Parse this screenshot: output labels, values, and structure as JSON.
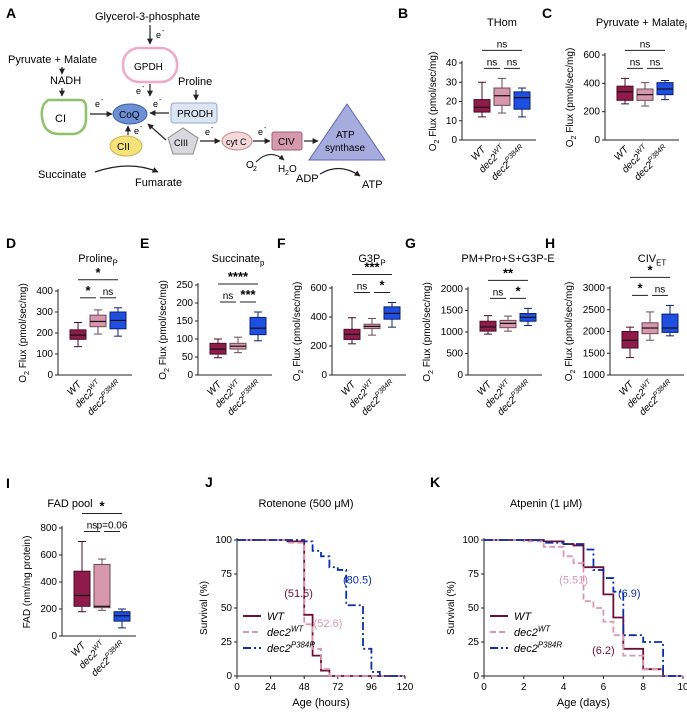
{
  "colors": {
    "wt": "#8e1b4a",
    "dec2wt": "#d897ad",
    "dec2p384r": "#1f4fe0",
    "wt_dark": "#6e1036",
    "p384r_dark": "#0b2fa8"
  },
  "groups": [
    "WT",
    "dec2",
    "dec2"
  ],
  "group_sup": [
    "",
    "WT",
    "P384R"
  ],
  "schematic": {
    "panel_label": "A",
    "glycerol": "Glycerol-3-phosphate",
    "pyruvate": "Pyruvate + Malate",
    "nadh": "NADH",
    "ci": "CI",
    "gpdh": "GPDH",
    "coq": "CoQ",
    "proline": "Proline",
    "prodh": "PRODH",
    "cii": "CII",
    "ciii": "CIII",
    "cytc": "cyt C",
    "civ": "CIV",
    "atp_synthase_1": "ATP",
    "atp_synthase_2": "synthase",
    "succinate": "Succinate",
    "fumarate": "Fumarate",
    "o2": "O",
    "o2_sub": "2",
    "h2o_h": "H",
    "h2o_sub": "2",
    "h2o_o": "O",
    "adp": "ADP",
    "atp": "ATP",
    "e": "e",
    "e_sup": "-"
  },
  "chart_data": [
    {
      "id": "B",
      "type": "box",
      "title": "THom",
      "title_sub": "",
      "ylabel": "O2 Flux (pmol/sec/mg)",
      "ylim": [
        0,
        40
      ],
      "yticks": [
        0,
        10,
        20,
        30,
        40
      ],
      "boxes": [
        {
          "min": 12,
          "q1": 14.5,
          "median": 17,
          "q3": 21,
          "max": 30
        },
        {
          "min": 14,
          "q1": 18,
          "median": 23,
          "q3": 27,
          "max": 32
        },
        {
          "min": 12,
          "q1": 16,
          "median": 22,
          "q3": 25,
          "max": 27
        }
      ],
      "sig": [
        {
          "a": 0,
          "b": 2,
          "label": "ns"
        },
        {
          "a": 0,
          "b": 1,
          "label": "ns"
        },
        {
          "a": 1,
          "b": 2,
          "label": "ns"
        }
      ]
    },
    {
      "id": "C",
      "type": "box",
      "title": "Pyruvate + Malate",
      "title_sub": "P",
      "ylabel": "O2 Flux (pmol/sec/mg)",
      "ylim": [
        0,
        600
      ],
      "yticks": [
        0,
        200,
        400,
        600
      ],
      "boxes": [
        {
          "min": 255,
          "q1": 280,
          "median": 340,
          "q3": 380,
          "max": 435
        },
        {
          "min": 240,
          "q1": 280,
          "median": 320,
          "q3": 360,
          "max": 405
        },
        {
          "min": 285,
          "q1": 320,
          "median": 360,
          "q3": 405,
          "max": 420
        }
      ],
      "sig": [
        {
          "a": 0,
          "b": 2,
          "label": "ns"
        },
        {
          "a": 0,
          "b": 1,
          "label": "ns"
        },
        {
          "a": 1,
          "b": 2,
          "label": "ns"
        }
      ]
    },
    {
      "id": "D",
      "type": "box",
      "title": "Proline",
      "title_sub": "P",
      "ylabel": "O2 Flux (pmol/sec/mg)",
      "ylim": [
        0,
        400
      ],
      "yticks": [
        0,
        100,
        200,
        300,
        400
      ],
      "boxes": [
        {
          "min": 135,
          "q1": 170,
          "median": 190,
          "q3": 215,
          "max": 250
        },
        {
          "min": 195,
          "q1": 230,
          "median": 255,
          "q3": 285,
          "max": 310
        },
        {
          "min": 185,
          "q1": 220,
          "median": 260,
          "q3": 300,
          "max": 320
        }
      ],
      "sig": [
        {
          "a": 0,
          "b": 2,
          "label": "*"
        },
        {
          "a": 0,
          "b": 1,
          "label": "*"
        },
        {
          "a": 1,
          "b": 2,
          "label": "ns"
        }
      ]
    },
    {
      "id": "E",
      "type": "box",
      "title": "Succinate",
      "title_sub": "p",
      "ylabel": "O2 Flux (pmol/sec/mg)",
      "ylim": [
        0,
        250
      ],
      "yticks": [
        0,
        50,
        100,
        150,
        200,
        250
      ],
      "boxes": [
        {
          "min": 48,
          "q1": 58,
          "median": 72,
          "q3": 88,
          "max": 100
        },
        {
          "min": 62,
          "q1": 72,
          "median": 80,
          "q3": 88,
          "max": 105
        },
        {
          "min": 95,
          "q1": 112,
          "median": 130,
          "q3": 160,
          "max": 175
        }
      ],
      "sig": [
        {
          "a": 0,
          "b": 2,
          "label": "****"
        },
        {
          "a": 1,
          "b": 2,
          "label": "***"
        },
        {
          "a": 0,
          "b": 1,
          "label": "ns"
        }
      ]
    },
    {
      "id": "F",
      "type": "box",
      "title": "G3P",
      "title_sub": "P",
      "ylabel": "O2 Flux (pmol/sec/mg)",
      "ylim": [
        0,
        600
      ],
      "yticks": [
        0,
        200,
        400,
        600
      ],
      "boxes": [
        {
          "min": 215,
          "q1": 245,
          "median": 280,
          "q3": 315,
          "max": 395
        },
        {
          "min": 275,
          "q1": 320,
          "median": 335,
          "q3": 350,
          "max": 390
        },
        {
          "min": 330,
          "q1": 385,
          "median": 425,
          "q3": 470,
          "max": 500
        }
      ],
      "sig": [
        {
          "a": 0,
          "b": 2,
          "label": "***"
        },
        {
          "a": 1,
          "b": 2,
          "label": "*"
        },
        {
          "a": 0,
          "b": 1,
          "label": "ns"
        }
      ]
    },
    {
      "id": "G",
      "type": "box",
      "title": "PM+Pro+S+G3P-E",
      "title_sub": "",
      "ylabel": "O2 Flux (pmol/sec/mg)",
      "ylim": [
        0,
        2000
      ],
      "yticks": [
        0,
        500,
        1000,
        1500,
        2000
      ],
      "boxes": [
        {
          "min": 950,
          "q1": 1020,
          "median": 1120,
          "q3": 1250,
          "max": 1380
        },
        {
          "min": 1020,
          "q1": 1100,
          "median": 1200,
          "q3": 1270,
          "max": 1370
        },
        {
          "min": 1150,
          "q1": 1250,
          "median": 1340,
          "q3": 1430,
          "max": 1550
        }
      ],
      "sig": [
        {
          "a": 0,
          "b": 2,
          "label": "**"
        },
        {
          "a": 1,
          "b": 2,
          "label": "*"
        },
        {
          "a": 0,
          "b": 1,
          "label": "ns"
        }
      ]
    },
    {
      "id": "H",
      "type": "box",
      "title": "CIV",
      "title_sub": "ET",
      "ylabel": "O2 Flux (pmol/sec/mg)",
      "ylim": [
        1000,
        3000
      ],
      "yticks": [
        1000,
        1500,
        2000,
        2500,
        3000
      ],
      "boxes": [
        {
          "min": 1400,
          "q1": 1620,
          "median": 1800,
          "q3": 2000,
          "max": 2100
        },
        {
          "min": 1800,
          "q1": 1950,
          "median": 2080,
          "q3": 2200,
          "max": 2450
        },
        {
          "min": 1900,
          "q1": 1980,
          "median": 2080,
          "q3": 2400,
          "max": 2600
        }
      ],
      "sig": [
        {
          "a": 0,
          "b": 2,
          "label": "*"
        },
        {
          "a": 0,
          "b": 1,
          "label": "*"
        },
        {
          "a": 1,
          "b": 2,
          "label": "ns"
        }
      ]
    },
    {
      "id": "I",
      "type": "box",
      "title": "FAD pool",
      "title_sub": "",
      "ylabel": "FAD (nm/mg protein)",
      "ylim": [
        0,
        800
      ],
      "yticks": [
        0,
        200,
        400,
        600,
        800
      ],
      "boxes": [
        {
          "min": 180,
          "q1": 220,
          "median": 300,
          "q3": 480,
          "max": 700
        },
        {
          "min": 190,
          "q1": 210,
          "median": 220,
          "q3": 530,
          "max": 570
        },
        {
          "min": 60,
          "q1": 110,
          "median": 150,
          "q3": 180,
          "max": 200
        }
      ],
      "sig": [
        {
          "a": 0,
          "b": 2,
          "label": "*"
        },
        {
          "a": 0,
          "b": 1,
          "label": "ns"
        },
        {
          "a": 1,
          "b": 2,
          "label": "p=0.06"
        }
      ]
    },
    {
      "id": "J",
      "type": "line",
      "title": "Rotenone (500 μM)",
      "xlabel": "Age (hours)",
      "ylabel": "Survival (%)",
      "xlim": [
        0,
        120
      ],
      "ylim": [
        0,
        100
      ],
      "xticks": [
        0,
        24,
        48,
        72,
        96,
        120
      ],
      "yticks": [
        0,
        25,
        50,
        75,
        100
      ],
      "series": [
        {
          "name": "WT",
          "sup": "",
          "style": "solid",
          "x": [
            0,
            36,
            48,
            48,
            54,
            60,
            66,
            120
          ],
          "y": [
            100,
            99,
            99,
            45,
            15,
            4,
            0,
            0
          ]
        },
        {
          "name": "dec2",
          "sup": "WT",
          "style": "dash",
          "x": [
            0,
            36,
            48,
            48,
            54,
            60,
            66,
            120
          ],
          "y": [
            100,
            98,
            98,
            38,
            20,
            5,
            0,
            0
          ]
        },
        {
          "name": "dec2",
          "sup": "P384R",
          "style": "dashdot",
          "x": [
            0,
            48,
            54,
            60,
            66,
            72,
            78,
            84,
            90,
            96,
            102,
            120
          ],
          "y": [
            100,
            99,
            92,
            88,
            80,
            78,
            52,
            52,
            20,
            3,
            0,
            0
          ]
        }
      ],
      "annotations": [
        {
          "text": "(51.5)",
          "series": 0,
          "x": 44,
          "y": 58
        },
        {
          "text": "(52.6)",
          "series": 1,
          "x": 65,
          "y": 36
        },
        {
          "text": "(80.5)",
          "series": 2,
          "x": 86,
          "y": 68
        }
      ],
      "legend_position": "bottom-left"
    },
    {
      "id": "K",
      "type": "line",
      "title": "Atpenin (1 μM)",
      "xlabel": "Age (days)",
      "ylabel": "Survival (%)",
      "xlim": [
        0,
        10
      ],
      "ylim": [
        0,
        100
      ],
      "xticks": [
        0,
        2,
        4,
        6,
        8,
        10
      ],
      "yticks": [
        0,
        25,
        50,
        75,
        100
      ],
      "series": [
        {
          "name": "WT",
          "sup": "",
          "style": "solid",
          "x": [
            0,
            3,
            4,
            4.5,
            5,
            5.5,
            6,
            6.5,
            7,
            8,
            9,
            10
          ],
          "y": [
            100,
            99,
            97,
            96,
            80,
            80,
            60,
            43,
            20,
            5,
            0,
            0
          ]
        },
        {
          "name": "dec2",
          "sup": "WT",
          "style": "dash",
          "x": [
            0,
            2,
            3,
            4,
            4.5,
            5,
            5.5,
            6,
            6.5,
            7,
            8,
            9,
            10
          ],
          "y": [
            100,
            99,
            95,
            88,
            83,
            55,
            50,
            40,
            30,
            15,
            5,
            0,
            0
          ]
        },
        {
          "name": "dec2",
          "sup": "P384R",
          "style": "dashdot",
          "x": [
            0,
            3,
            4,
            5,
            5.5,
            6,
            6.5,
            7,
            8,
            9,
            10
          ],
          "y": [
            100,
            98,
            97,
            93,
            78,
            72,
            62,
            30,
            25,
            0,
            0
          ]
        }
      ],
      "annotations": [
        {
          "text": "(5.51)",
          "series": 1,
          "x": 4.5,
          "y": 68
        },
        {
          "text": "(6.9)",
          "series": 2,
          "x": 7.3,
          "y": 58
        },
        {
          "text": "(6.2)",
          "series": 0,
          "x": 6.0,
          "y": 16
        }
      ],
      "legend_position": "bottom-left"
    }
  ]
}
